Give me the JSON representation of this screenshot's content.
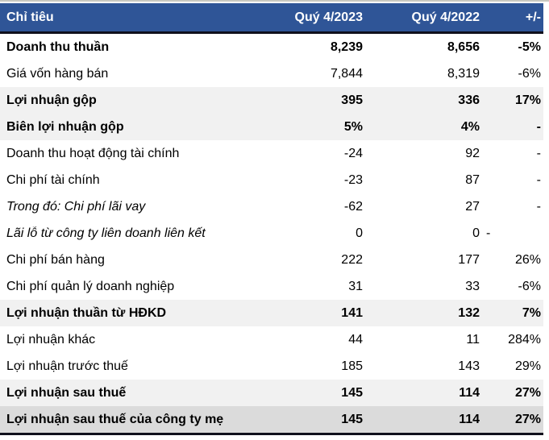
{
  "chart_data": {
    "type": "table",
    "title": "Ket qua kinh doanh Quy 4/2023 vs Quy 4/2022",
    "columns": [
      "Chỉ tiêu",
      "Quý 4/2023",
      "Quý 4/2022",
      "+/-"
    ],
    "rows": [
      {
        "label": "Doanh thu thuần",
        "q4_2023": "8,239",
        "q4_2022": "8,656",
        "change": "-5%",
        "emphasis": "bold",
        "bg": "white",
        "change_align": "right"
      },
      {
        "label": "Giá vốn hàng bán",
        "q4_2023": "7,844",
        "q4_2022": "8,319",
        "change": "-6%",
        "emphasis": "normal",
        "bg": "white",
        "change_align": "right"
      },
      {
        "label": "Lợi nhuận gộp",
        "q4_2023": "395",
        "q4_2022": "336",
        "change": "17%",
        "emphasis": "bold",
        "bg": "gray",
        "change_align": "right"
      },
      {
        "label": "Biên lợi nhuận gộp",
        "q4_2023": "5%",
        "q4_2022": "4%",
        "change": "-",
        "emphasis": "bold",
        "bg": "gray",
        "change_align": "right"
      },
      {
        "label": "Doanh thu hoạt động tài chính",
        "q4_2023": "-24",
        "q4_2022": "92",
        "change": "-",
        "emphasis": "normal",
        "bg": "white",
        "change_align": "right"
      },
      {
        "label": "Chi phí tài chính",
        "q4_2023": "-23",
        "q4_2022": "87",
        "change": "-",
        "emphasis": "normal",
        "bg": "white",
        "change_align": "right"
      },
      {
        "label": "Trong đó: Chi phí lãi vay",
        "q4_2023": "-62",
        "q4_2022": "27",
        "change": "-",
        "emphasis": "italic",
        "bg": "white",
        "change_align": "right"
      },
      {
        "label": "Lãi lỗ từ công ty liên doanh liên kết",
        "q4_2023": "0",
        "q4_2022": "0",
        "change": "-",
        "emphasis": "italic",
        "bg": "white",
        "change_align": "left"
      },
      {
        "label": "Chi phí bán hàng",
        "q4_2023": "222",
        "q4_2022": "177",
        "change": "26%",
        "emphasis": "normal",
        "bg": "white",
        "change_align": "right"
      },
      {
        "label": "Chi phí quản lý doanh nghiệp",
        "q4_2023": "31",
        "q4_2022": "33",
        "change": "-6%",
        "emphasis": "normal",
        "bg": "white",
        "change_align": "right"
      },
      {
        "label": "Lợi nhuận thuần từ HĐKD",
        "q4_2023": "141",
        "q4_2022": "132",
        "change": "7%",
        "emphasis": "bold",
        "bg": "gray",
        "change_align": "right"
      },
      {
        "label": "Lợi nhuận khác",
        "q4_2023": "44",
        "q4_2022": "11",
        "change": "284%",
        "emphasis": "normal",
        "bg": "white",
        "change_align": "right"
      },
      {
        "label": "Lợi nhuận trước thuế",
        "q4_2023": "185",
        "q4_2022": "143",
        "change": "29%",
        "emphasis": "normal",
        "bg": "white",
        "change_align": "right"
      },
      {
        "label": "Lợi nhuận sau thuế",
        "q4_2023": "145",
        "q4_2022": "114",
        "change": "27%",
        "emphasis": "bold",
        "bg": "gray",
        "change_align": "right"
      },
      {
        "label": "Lợi nhuận sau thuế của công ty mẹ",
        "q4_2023": "145",
        "q4_2022": "114",
        "change": "27%",
        "emphasis": "bold",
        "bg": "darkgray",
        "change_align": "right"
      }
    ]
  },
  "colors": {
    "header_bg": "#2F5597",
    "header_text": "#FFFFFF",
    "row_gray": "#F1F1F1",
    "row_dark_gray": "#DBDBDB",
    "border_dark": "#10101C",
    "hairline": "#C9C9C1",
    "text": "#000000"
  }
}
